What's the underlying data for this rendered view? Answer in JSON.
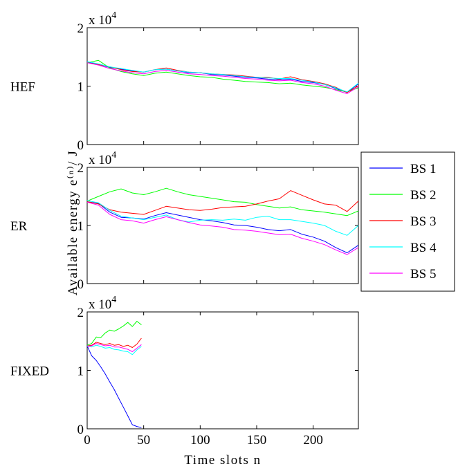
{
  "figure": {
    "ylabel": "Available energy e⁽ⁿ⁾/ J",
    "xlabel": "Time slots n"
  },
  "legend": {
    "placement": "right-middle",
    "items": [
      {
        "label": "BS 1",
        "color": "#0000ff"
      },
      {
        "label": "BS 2",
        "color": "#00ff00"
      },
      {
        "label": "BS 3",
        "color": "#ff0000"
      },
      {
        "label": "BS 4",
        "color": "#00ffff"
      },
      {
        "label": "BS 5",
        "color": "#ff00ff"
      }
    ]
  },
  "chart_data": [
    {
      "type": "line",
      "panel_label": "HEF",
      "exponent_label": "x 10",
      "exponent_power": "4",
      "xlim": [
        0,
        240
      ],
      "ylim": [
        0,
        20000
      ],
      "yticks": [
        0,
        10000,
        20000
      ],
      "ytick_labels": [
        "0",
        "1",
        "2"
      ],
      "xticks": [
        0,
        50,
        100,
        150,
        200
      ],
      "xtick_labels": [],
      "series": [
        {
          "name": "BS 1",
          "color": "#0000ff",
          "x": [
            0,
            10,
            20,
            30,
            40,
            50,
            60,
            70,
            80,
            90,
            100,
            110,
            120,
            130,
            140,
            150,
            160,
            170,
            180,
            190,
            200,
            210,
            220,
            230,
            240
          ],
          "y": [
            14100,
            13700,
            13200,
            12900,
            12600,
            12400,
            12800,
            12900,
            12600,
            12300,
            12300,
            12000,
            11900,
            11700,
            11500,
            11400,
            11200,
            11100,
            11200,
            10800,
            10600,
            10300,
            9600,
            8900,
            10400
          ]
        },
        {
          "name": "BS 2",
          "color": "#00ff00",
          "x": [
            0,
            10,
            20,
            30,
            40,
            50,
            60,
            70,
            80,
            90,
            100,
            110,
            120,
            130,
            140,
            150,
            160,
            170,
            180,
            190,
            200,
            210,
            220,
            230,
            240
          ],
          "y": [
            14000,
            14400,
            13100,
            12500,
            12100,
            11800,
            12200,
            12400,
            12100,
            11800,
            11600,
            11500,
            11200,
            11000,
            10800,
            10700,
            10600,
            10400,
            10500,
            10200,
            10000,
            9800,
            9400,
            9000,
            9700
          ]
        },
        {
          "name": "BS 3",
          "color": "#ff0000",
          "x": [
            0,
            10,
            20,
            30,
            40,
            50,
            60,
            70,
            80,
            90,
            100,
            110,
            120,
            130,
            140,
            150,
            160,
            170,
            180,
            190,
            200,
            210,
            220,
            230,
            240
          ],
          "y": [
            14000,
            13700,
            13300,
            12800,
            12500,
            12400,
            12800,
            13100,
            12700,
            12400,
            12300,
            12100,
            12000,
            11900,
            11700,
            11500,
            11500,
            11200,
            11600,
            11100,
            10800,
            10400,
            9800,
            8900,
            10100
          ]
        },
        {
          "name": "BS 4",
          "color": "#00ffff",
          "x": [
            0,
            10,
            20,
            30,
            40,
            50,
            60,
            70,
            80,
            90,
            100,
            110,
            120,
            130,
            140,
            150,
            160,
            170,
            180,
            190,
            200,
            210,
            220,
            230,
            240
          ],
          "y": [
            14200,
            13800,
            13300,
            13000,
            12700,
            12400,
            12800,
            12900,
            12600,
            12400,
            12300,
            12100,
            12000,
            11800,
            11600,
            11500,
            11400,
            11300,
            11300,
            11000,
            10700,
            10300,
            9700,
            9000,
            10500
          ]
        },
        {
          "name": "BS 5",
          "color": "#ff00ff",
          "x": [
            0,
            10,
            20,
            30,
            40,
            50,
            60,
            70,
            80,
            90,
            100,
            110,
            120,
            130,
            140,
            150,
            160,
            170,
            180,
            190,
            200,
            210,
            220,
            230,
            240
          ],
          "y": [
            14000,
            13600,
            13000,
            12600,
            12300,
            12100,
            12500,
            12700,
            12400,
            12100,
            12000,
            11800,
            11700,
            11500,
            11300,
            11200,
            11000,
            10900,
            11000,
            10600,
            10400,
            10000,
            9300,
            8700,
            9900
          ]
        }
      ]
    },
    {
      "type": "line",
      "panel_label": "ER",
      "exponent_label": "x 10",
      "exponent_power": "4",
      "xlim": [
        0,
        240
      ],
      "ylim": [
        0,
        20000
      ],
      "yticks": [
        0,
        10000,
        20000
      ],
      "ytick_labels": [
        "0",
        "1",
        "2"
      ],
      "xticks": [
        0,
        50,
        100,
        150,
        200
      ],
      "xtick_labels": [],
      "series": [
        {
          "name": "BS 1",
          "color": "#0000ff",
          "x": [
            0,
            10,
            20,
            30,
            40,
            50,
            60,
            70,
            80,
            90,
            100,
            110,
            120,
            130,
            140,
            150,
            160,
            170,
            180,
            190,
            200,
            210,
            220,
            230,
            240
          ],
          "y": [
            14100,
            13800,
            12300,
            11400,
            11300,
            11100,
            11700,
            12200,
            11800,
            11400,
            11000,
            10800,
            10500,
            10100,
            10000,
            9700,
            9300,
            9100,
            9300,
            8500,
            8000,
            7300,
            6200,
            5300,
            6600
          ]
        },
        {
          "name": "BS 2",
          "color": "#00ff00",
          "x": [
            0,
            10,
            20,
            30,
            40,
            50,
            60,
            70,
            80,
            90,
            100,
            110,
            120,
            130,
            140,
            150,
            160,
            170,
            180,
            190,
            200,
            210,
            220,
            230,
            240
          ],
          "y": [
            14200,
            15000,
            15800,
            16300,
            15600,
            15300,
            15800,
            16400,
            15800,
            15300,
            15000,
            14700,
            14400,
            14100,
            14000,
            13600,
            13300,
            13000,
            13200,
            12700,
            12500,
            12300,
            12000,
            11700,
            12500
          ]
        },
        {
          "name": "BS 3",
          "color": "#ff0000",
          "x": [
            0,
            10,
            20,
            30,
            40,
            50,
            60,
            70,
            80,
            90,
            100,
            110,
            120,
            130,
            140,
            150,
            160,
            170,
            180,
            190,
            200,
            210,
            220,
            230,
            240
          ],
          "y": [
            14100,
            13700,
            12700,
            12300,
            12100,
            11900,
            12600,
            13300,
            13000,
            12700,
            12600,
            12800,
            13100,
            13200,
            13300,
            13700,
            14200,
            14600,
            16000,
            15200,
            14400,
            13700,
            13500,
            12400,
            14200
          ]
        },
        {
          "name": "BS 4",
          "color": "#00ffff",
          "x": [
            0,
            10,
            20,
            30,
            40,
            50,
            60,
            70,
            80,
            90,
            100,
            110,
            120,
            130,
            140,
            150,
            160,
            170,
            180,
            190,
            200,
            210,
            220,
            230,
            240
          ],
          "y": [
            14300,
            13900,
            12600,
            11600,
            11300,
            11000,
            11400,
            11800,
            11000,
            10600,
            10900,
            11000,
            10900,
            11100,
            10900,
            11400,
            11600,
            11000,
            11000,
            10700,
            10400,
            10000,
            9000,
            8300,
            10000
          ]
        },
        {
          "name": "BS 5",
          "color": "#ff00ff",
          "x": [
            0,
            10,
            20,
            30,
            40,
            50,
            60,
            70,
            80,
            90,
            100,
            110,
            120,
            130,
            140,
            150,
            160,
            170,
            180,
            190,
            200,
            210,
            220,
            230,
            240
          ],
          "y": [
            14000,
            13500,
            11900,
            11000,
            10800,
            10400,
            11000,
            11500,
            11000,
            10500,
            10100,
            9900,
            9700,
            9300,
            9200,
            9000,
            8700,
            8400,
            8500,
            7800,
            7300,
            6700,
            5800,
            5000,
            6200
          ]
        }
      ]
    },
    {
      "type": "line",
      "panel_label": "FIXED",
      "exponent_label": "x 10",
      "exponent_power": "4",
      "xlim": [
        0,
        240
      ],
      "ylim": [
        0,
        20000
      ],
      "yticks": [
        0,
        10000,
        20000
      ],
      "ytick_labels": [
        "0",
        "1",
        "2"
      ],
      "xticks": [
        0,
        50,
        100,
        150,
        200
      ],
      "xtick_labels": [
        "0",
        "50",
        "100",
        "150",
        "200"
      ],
      "series": [
        {
          "name": "BS 1",
          "color": "#0000ff",
          "x": [
            0,
            4,
            8,
            12,
            16,
            20,
            24,
            28,
            32,
            36,
            40,
            44,
            48
          ],
          "y": [
            14200,
            12500,
            11700,
            10600,
            9400,
            8000,
            6700,
            5200,
            3700,
            2200,
            700,
            400,
            200
          ]
        },
        {
          "name": "BS 2",
          "color": "#00ff00",
          "x": [
            0,
            4,
            8,
            12,
            16,
            20,
            24,
            28,
            32,
            36,
            40,
            44,
            48
          ],
          "y": [
            14300,
            14600,
            15700,
            15600,
            16400,
            16900,
            16700,
            17100,
            17600,
            18200,
            17500,
            18400,
            17800
          ]
        },
        {
          "name": "BS 3",
          "color": "#ff0000",
          "x": [
            0,
            4,
            8,
            12,
            16,
            20,
            24,
            28,
            32,
            36,
            40,
            44,
            48
          ],
          "y": [
            14200,
            14300,
            14800,
            14600,
            14400,
            14600,
            14300,
            14400,
            14100,
            14300,
            13900,
            14500,
            15500
          ]
        },
        {
          "name": "BS 4",
          "color": "#00ffff",
          "x": [
            0,
            4,
            8,
            12,
            16,
            20,
            24,
            28,
            32,
            36,
            40,
            44,
            48
          ],
          "y": [
            14200,
            14000,
            14300,
            14100,
            13800,
            13900,
            13600,
            13500,
            13300,
            13200,
            12700,
            13500,
            14100
          ]
        },
        {
          "name": "BS 5",
          "color": "#ff00ff",
          "x": [
            0,
            4,
            8,
            12,
            16,
            20,
            24,
            28,
            32,
            36,
            40,
            44,
            48
          ],
          "y": [
            14100,
            14200,
            14600,
            14400,
            14200,
            14300,
            14000,
            14000,
            13800,
            13600,
            13200,
            13800,
            14400
          ]
        }
      ]
    }
  ]
}
